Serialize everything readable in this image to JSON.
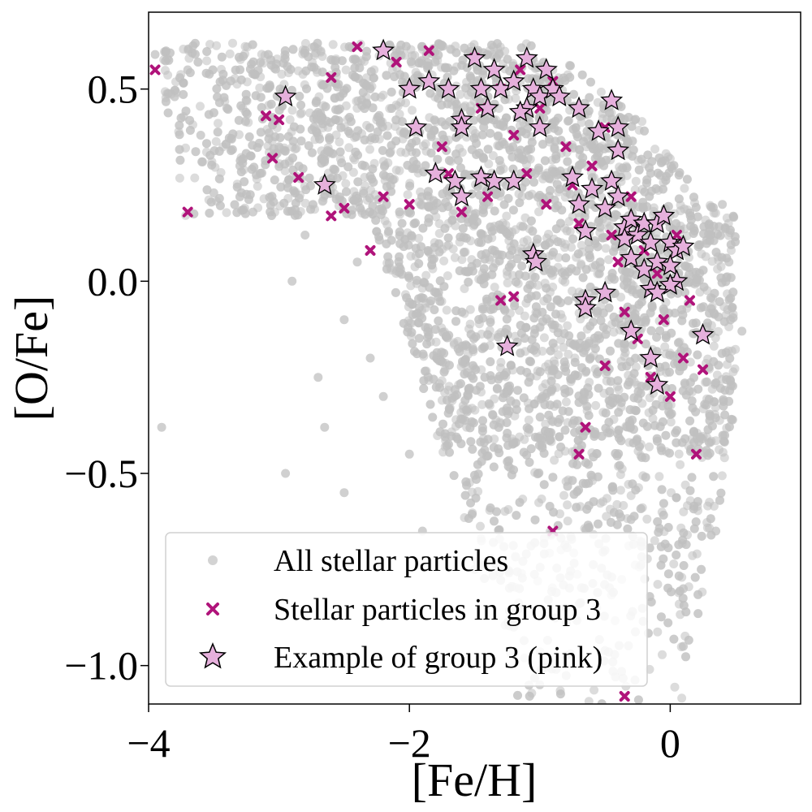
{
  "chart_data": {
    "type": "scatter",
    "title": "",
    "xlabel": "[Fe/H]",
    "ylabel": "[O/Fe]",
    "xlim": [
      -4,
      1
    ],
    "ylim": [
      -1.1,
      0.7
    ],
    "xticks": [
      {
        "value": -4,
        "label": "−4"
      },
      {
        "value": -2,
        "label": "−2"
      },
      {
        "value": 0,
        "label": "0"
      }
    ],
    "yticks": [
      {
        "value": 0.5,
        "label": "0.5"
      },
      {
        "value": 0.0,
        "label": "0.0"
      },
      {
        "value": -0.5,
        "label": "−0.5"
      },
      {
        "value": -1.0,
        "label": "−1.0"
      }
    ],
    "grid": false,
    "legend_position": "lower-left",
    "series": [
      {
        "name": "All stellar particles",
        "marker": "circle",
        "color": "#c0c0c0",
        "note": "dense background cloud (thousands of points)",
        "points": [
          [
            -3.95,
            0.59
          ],
          [
            -3.8,
            0.48
          ],
          [
            -3.6,
            0.38
          ],
          [
            -3.5,
            0.23
          ],
          [
            -3.3,
            0.3
          ],
          [
            -3.2,
            0.18
          ],
          [
            -3.0,
            0.35
          ],
          [
            -2.9,
            0.0
          ],
          [
            -2.8,
            0.12
          ],
          [
            -2.7,
            -0.25
          ],
          [
            -2.65,
            -0.38
          ],
          [
            -3.9,
            -0.38
          ],
          [
            -2.95,
            -0.5
          ],
          [
            -2.5,
            -0.55
          ],
          [
            -2.5,
            -0.1
          ],
          [
            -2.3,
            -0.2
          ],
          [
            -2.2,
            -0.3
          ],
          [
            -2.0,
            -0.45
          ],
          [
            -1.9,
            -0.65
          ],
          [
            -1.5,
            -0.75
          ],
          [
            -1.2,
            -0.9
          ],
          [
            -1.0,
            -1.05
          ],
          [
            -0.8,
            -0.85
          ],
          [
            -0.5,
            -0.7
          ],
          [
            -0.3,
            -0.62
          ],
          [
            0.1,
            -0.8
          ],
          [
            0.1,
            -0.95
          ],
          [
            0.35,
            -0.65
          ],
          [
            0.55,
            -0.13
          ],
          [
            0.45,
            0.05
          ],
          [
            0.4,
            0.2
          ],
          [
            -3.7,
            0.55
          ],
          [
            -3.4,
            0.45
          ],
          [
            -2.4,
            0.05
          ]
        ]
      },
      {
        "name": "Stellar particles in group 3",
        "marker": "x",
        "color": "#b0137a",
        "points": [
          [
            -3.95,
            0.55
          ],
          [
            -3.7,
            0.18
          ],
          [
            -3.1,
            0.43
          ],
          [
            -3.0,
            0.42
          ],
          [
            -3.05,
            0.32
          ],
          [
            -2.85,
            0.27
          ],
          [
            -2.6,
            0.53
          ],
          [
            -2.6,
            0.17
          ],
          [
            -2.5,
            0.19
          ],
          [
            -2.4,
            0.61
          ],
          [
            -2.3,
            0.08
          ],
          [
            -2.2,
            0.22
          ],
          [
            -2.1,
            0.57
          ],
          [
            -2.0,
            0.2
          ],
          [
            -1.85,
            0.6
          ],
          [
            -1.75,
            0.35
          ],
          [
            -1.7,
            0.28
          ],
          [
            -1.6,
            0.18
          ],
          [
            -1.5,
            0.58
          ],
          [
            -1.45,
            0.45
          ],
          [
            -1.4,
            0.22
          ],
          [
            -1.3,
            0.5
          ],
          [
            -1.2,
            0.38
          ],
          [
            -1.15,
            0.55
          ],
          [
            -1.1,
            0.28
          ],
          [
            -1.0,
            0.45
          ],
          [
            -0.95,
            0.2
          ],
          [
            -0.9,
            0.52
          ],
          [
            -0.8,
            0.35
          ],
          [
            -0.75,
            0.25
          ],
          [
            -0.7,
            0.15
          ],
          [
            -0.6,
            0.3
          ],
          [
            -0.5,
            0.4
          ],
          [
            -0.45,
            0.12
          ],
          [
            -0.4,
            0.05
          ],
          [
            -0.35,
            -0.08
          ],
          [
            -0.3,
            0.22
          ],
          [
            -0.25,
            -0.15
          ],
          [
            -0.2,
            0.08
          ],
          [
            -0.15,
            -0.25
          ],
          [
            -0.1,
            0.02
          ],
          [
            -0.05,
            -0.1
          ],
          [
            0.0,
            -0.3
          ],
          [
            0.05,
            0.12
          ],
          [
            0.1,
            -0.2
          ],
          [
            0.15,
            -0.05
          ],
          [
            0.2,
            -0.45
          ],
          [
            0.25,
            -0.23
          ],
          [
            -1.3,
            -0.05
          ],
          [
            -1.2,
            -0.04
          ],
          [
            -0.7,
            -0.45
          ],
          [
            -0.65,
            -0.38
          ],
          [
            -0.5,
            -0.22
          ],
          [
            -0.9,
            -0.65
          ],
          [
            -0.35,
            -1.08
          ]
        ]
      },
      {
        "name": "Example of group 3 (pink)",
        "marker": "star",
        "color": "#e6b0dc",
        "edgecolor": "#000000",
        "points": [
          [
            -2.2,
            0.6
          ],
          [
            -2.95,
            0.48
          ],
          [
            -2.65,
            0.25
          ],
          [
            -2.0,
            0.5
          ],
          [
            -1.95,
            0.4
          ],
          [
            -1.85,
            0.52
          ],
          [
            -1.7,
            0.5
          ],
          [
            -1.6,
            0.42
          ],
          [
            -1.6,
            0.4
          ],
          [
            -1.5,
            0.58
          ],
          [
            -1.45,
            0.5
          ],
          [
            -1.4,
            0.45
          ],
          [
            -1.35,
            0.55
          ],
          [
            -1.3,
            0.5
          ],
          [
            -1.2,
            0.52
          ],
          [
            -1.1,
            0.58
          ],
          [
            -1.1,
            0.45
          ],
          [
            -1.05,
            0.5
          ],
          [
            -1.0,
            0.48
          ],
          [
            -0.95,
            0.55
          ],
          [
            -0.9,
            0.5
          ],
          [
            -0.85,
            0.48
          ],
          [
            -1.15,
            0.44
          ],
          [
            -1.0,
            0.4
          ],
          [
            -0.7,
            0.45
          ],
          [
            -0.55,
            0.39
          ],
          [
            -0.45,
            0.47
          ],
          [
            -0.4,
            0.4
          ],
          [
            -0.4,
            0.34
          ],
          [
            -1.8,
            0.28
          ],
          [
            -1.65,
            0.26
          ],
          [
            -1.6,
            0.22
          ],
          [
            -1.45,
            0.27
          ],
          [
            -1.35,
            0.26
          ],
          [
            -1.2,
            0.26
          ],
          [
            -0.75,
            0.27
          ],
          [
            -0.7,
            0.2
          ],
          [
            -0.65,
            0.13
          ],
          [
            -0.6,
            0.24
          ],
          [
            -0.5,
            0.19
          ],
          [
            -0.45,
            0.26
          ],
          [
            -0.4,
            0.22
          ],
          [
            -0.35,
            0.14
          ],
          [
            -0.3,
            0.16
          ],
          [
            -0.25,
            0.12
          ],
          [
            -0.2,
            0.15
          ],
          [
            -0.15,
            0.1
          ],
          [
            -0.1,
            0.15
          ],
          [
            -0.05,
            0.17
          ],
          [
            0.0,
            0.1
          ],
          [
            0.05,
            0.08
          ],
          [
            0.1,
            0.09
          ],
          [
            -0.35,
            0.11
          ],
          [
            -0.3,
            0.06
          ],
          [
            -0.2,
            0.03
          ],
          [
            -0.1,
            0.05
          ],
          [
            0.0,
            0.04
          ],
          [
            0.05,
            0.0
          ],
          [
            0.0,
            -0.01
          ],
          [
            -0.15,
            -0.02
          ],
          [
            -0.1,
            -0.03
          ],
          [
            -1.05,
            0.07
          ],
          [
            -1.03,
            0.05
          ],
          [
            -0.65,
            -0.05
          ],
          [
            -0.65,
            -0.07
          ],
          [
            -0.5,
            -0.03
          ],
          [
            -1.25,
            -0.17
          ],
          [
            -0.3,
            -0.13
          ],
          [
            -0.15,
            -0.2
          ],
          [
            -0.1,
            -0.27
          ],
          [
            0.25,
            -0.14
          ]
        ]
      }
    ]
  },
  "legend": {
    "items": [
      {
        "label": "All stellar particles",
        "marker": "circle"
      },
      {
        "label": "Stellar particles in group 3",
        "marker": "x"
      },
      {
        "label": "Example of group 3 (pink)",
        "marker": "star"
      }
    ]
  },
  "colors": {
    "all_particles": "#c0c0c0",
    "group3": "#b0137a",
    "example_fill": "#e6b0dc",
    "example_edge": "#000000"
  }
}
